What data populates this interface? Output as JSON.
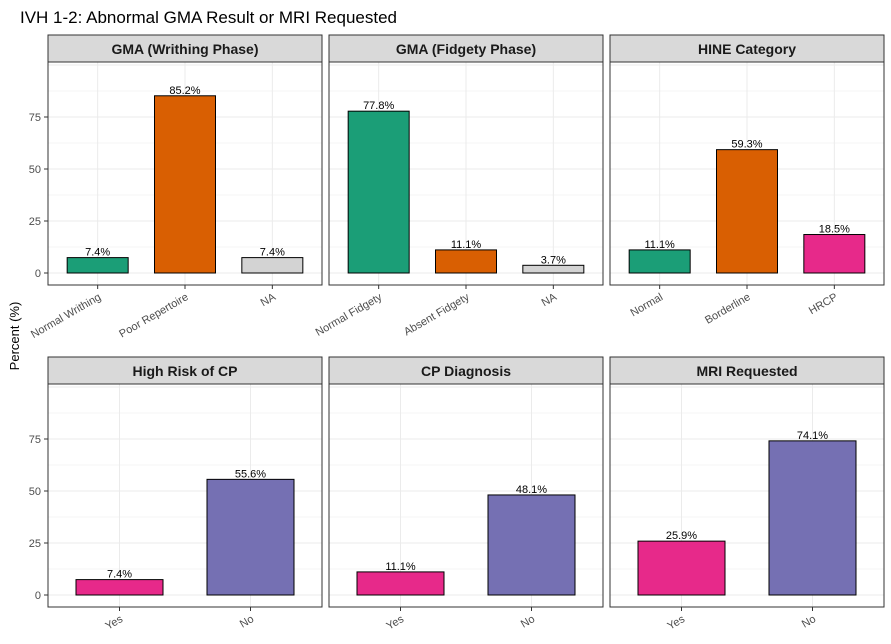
{
  "chart_data": {
    "title": "IVH 1-2: Abnormal GMA Result or MRI Requested",
    "ylabel": "Percent (%)",
    "ylim": [
      0,
      100
    ],
    "yticks": [
      0,
      25,
      50,
      75
    ],
    "grid": true,
    "panels": [
      {
        "type": "bar",
        "title": "GMA (Writhing Phase)",
        "categories": [
          "Normal Writhing",
          "Poor Repertoire",
          "NA"
        ],
        "values": [
          7.4,
          85.2,
          7.4
        ],
        "labels": [
          "7.4%",
          "85.2%",
          "7.4%"
        ],
        "colors": [
          "#1b9e77",
          "#d95f02",
          "#d3d3d3"
        ]
      },
      {
        "type": "bar",
        "title": "GMA (Fidgety Phase)",
        "categories": [
          "Normal Fidgety",
          "Absent Fidgety",
          "NA"
        ],
        "values": [
          77.8,
          11.1,
          3.7
        ],
        "labels": [
          "77.8%",
          "11.1%",
          "3.7%"
        ],
        "colors": [
          "#1b9e77",
          "#d95f02",
          "#d3d3d3"
        ]
      },
      {
        "type": "bar",
        "title": "HINE Category",
        "categories": [
          "Normal",
          "Borderline",
          "HRCP"
        ],
        "values": [
          11.1,
          59.3,
          18.5
        ],
        "labels": [
          "11.1%",
          "59.3%",
          "18.5%"
        ],
        "colors": [
          "#1b9e77",
          "#d95f02",
          "#e7298a"
        ]
      },
      {
        "type": "bar",
        "title": "High Risk of CP",
        "categories": [
          "Yes",
          "No"
        ],
        "values": [
          7.4,
          55.6
        ],
        "labels": [
          "7.4%",
          "55.6%"
        ],
        "colors": [
          "#e7298a",
          "#7570b3"
        ]
      },
      {
        "type": "bar",
        "title": "CP Diagnosis",
        "categories": [
          "Yes",
          "No"
        ],
        "values": [
          11.1,
          48.1
        ],
        "labels": [
          "11.1%",
          "48.1%"
        ],
        "colors": [
          "#e7298a",
          "#7570b3"
        ]
      },
      {
        "type": "bar",
        "title": "MRI Requested",
        "categories": [
          "Yes",
          "No"
        ],
        "values": [
          25.9,
          74.1
        ],
        "labels": [
          "25.9%",
          "74.1%"
        ],
        "colors": [
          "#e7298a",
          "#7570b3"
        ]
      }
    ]
  }
}
